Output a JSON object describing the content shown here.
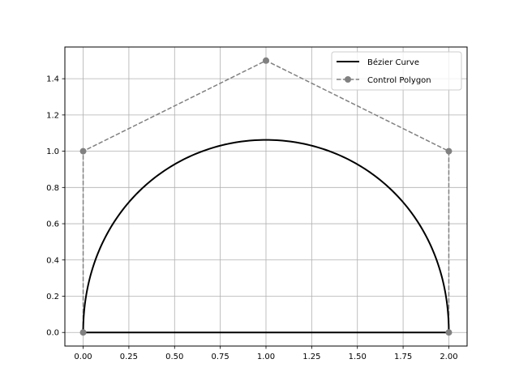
{
  "chart_data": {
    "type": "line",
    "title": "",
    "xlabel": "",
    "ylabel": "",
    "xlim": [
      -0.1,
      2.1
    ],
    "ylim": [
      -0.075,
      1.575
    ],
    "grid": true,
    "legend_position": "top-right",
    "x_ticks": [
      0.0,
      0.25,
      0.5,
      0.75,
      1.0,
      1.25,
      1.5,
      1.75,
      2.0
    ],
    "x_tick_labels": [
      "0.00",
      "0.25",
      "0.50",
      "0.75",
      "1.00",
      "1.25",
      "1.50",
      "1.75",
      "2.00"
    ],
    "y_ticks": [
      0.0,
      0.2,
      0.4,
      0.6,
      0.8,
      1.0,
      1.2,
      1.4
    ],
    "y_tick_labels": [
      "0.0",
      "0.2",
      "0.4",
      "0.6",
      "0.8",
      "1.0",
      "1.2",
      "1.4"
    ],
    "series": [
      {
        "name": "Bézier Curve",
        "kind": "curve",
        "color": "#000000",
        "line_style": "solid",
        "control_points": [
          [
            0,
            0
          ],
          [
            0,
            1
          ],
          [
            1,
            1.5
          ],
          [
            2,
            1
          ],
          [
            2,
            0
          ]
        ],
        "closing_segment": [
          [
            0,
            0
          ],
          [
            2,
            0
          ]
        ]
      },
      {
        "name": "Control Polygon",
        "kind": "polyline",
        "color": "#808080",
        "line_style": "dashed",
        "marker": "circle",
        "x": [
          0,
          0,
          1,
          2,
          2
        ],
        "y": [
          0,
          1,
          1.5,
          1,
          0
        ]
      }
    ]
  }
}
